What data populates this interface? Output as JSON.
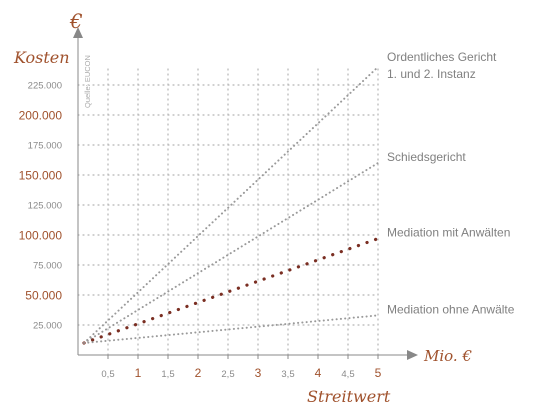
{
  "chart_data": {
    "type": "line",
    "currency_symbol": "€",
    "ylabel": "Kosten",
    "xlabel": "Streitwert",
    "x_unit_label": "Mio. €",
    "source_note": "Quelle: EUCON",
    "xlim": [
      0,
      5
    ],
    "ylim": [
      0,
      250000
    ],
    "grid": true,
    "y_ticks": [
      {
        "value": 25000,
        "label": "25.000",
        "major": false
      },
      {
        "value": 50000,
        "label": "50.000",
        "major": true
      },
      {
        "value": 75000,
        "label": "75.000",
        "major": false
      },
      {
        "value": 100000,
        "label": "100.000",
        "major": true
      },
      {
        "value": 125000,
        "label": "125.000",
        "major": false
      },
      {
        "value": 150000,
        "label": "150.000",
        "major": true
      },
      {
        "value": 175000,
        "label": "175.000",
        "major": false
      },
      {
        "value": 200000,
        "label": "200.000",
        "major": true
      },
      {
        "value": 225000,
        "label": "225.000",
        "major": false
      }
    ],
    "x_ticks": [
      {
        "value": 0.5,
        "label": "0,5",
        "major": false
      },
      {
        "value": 1,
        "label": "1",
        "major": true
      },
      {
        "value": 1.5,
        "label": "1,5",
        "major": false
      },
      {
        "value": 2,
        "label": "2",
        "major": true
      },
      {
        "value": 2.5,
        "label": "2,5",
        "major": false
      },
      {
        "value": 3,
        "label": "3",
        "major": true
      },
      {
        "value": 3.5,
        "label": "3,5",
        "major": false
      },
      {
        "value": 4,
        "label": "4",
        "major": true
      },
      {
        "value": 4.5,
        "label": "4,5",
        "major": false
      },
      {
        "value": 5,
        "label": "5",
        "major": true
      }
    ],
    "series": [
      {
        "name": "Ordentliches Gericht 1. und 2. Instanz",
        "label_lines": [
          "Ordentliches Gericht",
          "1. und 2. Instanz"
        ],
        "x": [
          0.1,
          5
        ],
        "values": [
          10000,
          240000
        ],
        "color": "#9a9a9a",
        "emphasis": false
      },
      {
        "name": "Schiedsgericht",
        "label_lines": [
          "Schiedsgericht"
        ],
        "x": [
          0.1,
          5
        ],
        "values": [
          10000,
          160000
        ],
        "color": "#9a9a9a",
        "emphasis": false
      },
      {
        "name": "Mediation mit Anwälten",
        "label_lines": [
          "Mediation mit Anwälten"
        ],
        "x": [
          0.1,
          5
        ],
        "values": [
          10000,
          97000
        ],
        "color": "#7a2e22",
        "emphasis": true
      },
      {
        "name": "Mediation ohne Anwälte",
        "label_lines": [
          "Mediation ohne Anwälte"
        ],
        "x": [
          0.1,
          5
        ],
        "values": [
          10000,
          33000
        ],
        "color": "#9a9a9a",
        "emphasis": false
      }
    ],
    "colors": {
      "accent": "#a0522d",
      "muted": "#8a8a8a",
      "grid": "#b5b5b5",
      "axis": "#888888"
    }
  }
}
